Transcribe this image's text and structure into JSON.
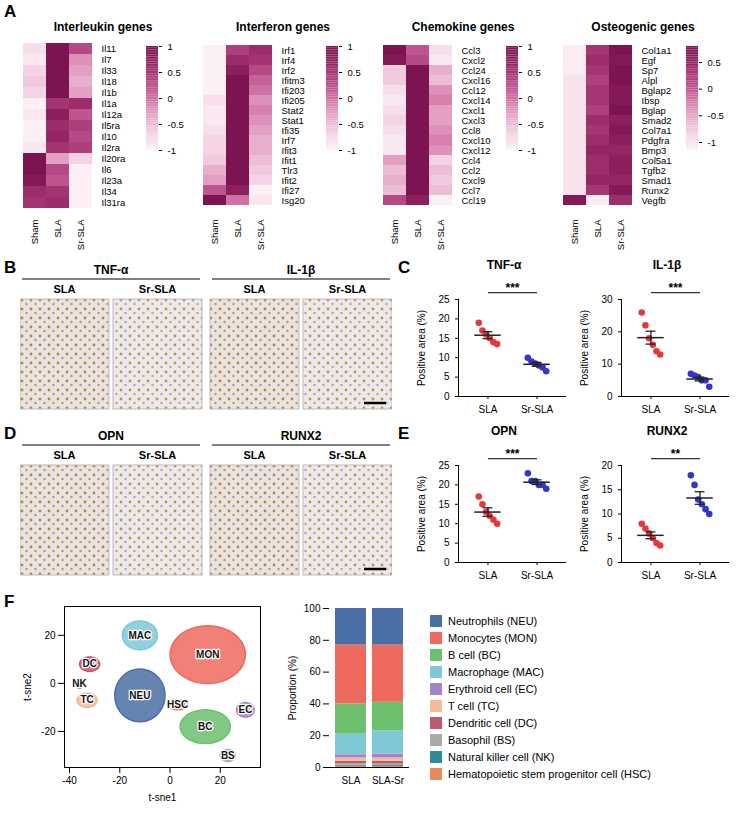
{
  "chart_data": [
    {
      "panel": "A",
      "type": "heatmap",
      "title": "Interleukin genes",
      "categories": [
        "Sham",
        "SLA",
        "Sr-SLA"
      ],
      "rows": [
        "Il11",
        "Il7",
        "Il33",
        "Il18",
        "Il1b",
        "Il1a",
        "Il12a",
        "Il5ra",
        "Il10",
        "Il2ra",
        "Il20ra",
        "Il6",
        "Il23a",
        "Il34",
        "Il31ra"
      ],
      "cells": [
        [
          -0.8,
          1,
          0.3
        ],
        [
          -0.9,
          1,
          -0.2
        ],
        [
          -0.7,
          1,
          -0.3
        ],
        [
          -0.6,
          1,
          -0.4
        ],
        [
          -0.7,
          1,
          -0.3
        ],
        [
          -1,
          0.5,
          0.6
        ],
        [
          -0.9,
          0.8,
          0.2
        ],
        [
          -1,
          0.6,
          0.4
        ],
        [
          -1,
          0.7,
          0.3
        ],
        [
          -0.9,
          0.5,
          0.4
        ],
        [
          1,
          -0.3,
          -0.7
        ],
        [
          1,
          0.3,
          -1
        ],
        [
          0.9,
          0.2,
          -1
        ],
        [
          0.6,
          0.5,
          -1
        ],
        [
          0.5,
          0.6,
          -1
        ]
      ],
      "colorlim": [
        -1,
        1
      ],
      "colorticks": [
        1,
        0.5,
        0,
        -0.5,
        -1
      ]
    },
    {
      "type": "heatmap",
      "title": "Interferon genes",
      "categories": [
        "Sham",
        "SLA",
        "Sr-SLA"
      ],
      "rows": [
        "Irf1",
        "Irf4",
        "Irf2",
        "Ifitm3",
        "Ifi203",
        "Ifi205",
        "Stat2",
        "Stat1",
        "Ifi35",
        "Irf7",
        "Ifit3",
        "Ifit1",
        "Tlr3",
        "Ifit2",
        "Ifi27",
        "Isg20"
      ],
      "cells": [
        [
          -1,
          0.4,
          0.6
        ],
        [
          -1,
          0.6,
          0.5
        ],
        [
          -1,
          0.8,
          0.3
        ],
        [
          -1,
          1,
          0.1
        ],
        [
          -1,
          1,
          0
        ],
        [
          -0.8,
          1,
          -0.2
        ],
        [
          -0.9,
          1,
          -0.1
        ],
        [
          -0.9,
          1,
          -0.2
        ],
        [
          -0.8,
          1,
          -0.3
        ],
        [
          -0.7,
          1,
          -0.4
        ],
        [
          -0.7,
          1,
          -0.4
        ],
        [
          -0.6,
          1,
          -0.5
        ],
        [
          -0.4,
          1,
          -0.6
        ],
        [
          -0.3,
          1,
          -0.7
        ],
        [
          0.2,
          0.8,
          -1
        ],
        [
          1,
          0,
          -0.9
        ]
      ],
      "colorlim": [
        -1,
        1
      ],
      "colorticks": [
        1,
        0.5,
        0,
        -0.5,
        -1
      ]
    },
    {
      "type": "heatmap",
      "title": "Chemokine genes",
      "categories": [
        "Sham",
        "SLA",
        "Sr-SLA"
      ],
      "rows": [
        "Ccl3",
        "Cxcl2",
        "Ccl24",
        "Cxcl16",
        "Ccl12",
        "Cxcl14",
        "Cxcl1",
        "Cxcl3",
        "Ccl8",
        "Cxcl10",
        "Cxcl12",
        "Ccl4",
        "Ccl2",
        "Cxcl9",
        "Ccl7",
        "Ccl19"
      ],
      "cells": [
        [
          1,
          0.2,
          -0.8
        ],
        [
          0.9,
          0.3,
          -0.9
        ],
        [
          -0.6,
          1,
          -0.4
        ],
        [
          -0.6,
          1,
          -0.5
        ],
        [
          -0.8,
          1,
          -0.2
        ],
        [
          -0.9,
          1,
          -0.1
        ],
        [
          -0.8,
          1,
          -0.3
        ],
        [
          -0.7,
          1,
          -0.3
        ],
        [
          -0.8,
          1,
          -0.2
        ],
        [
          -0.9,
          1,
          -0.1
        ],
        [
          -0.9,
          1,
          -0.2
        ],
        [
          -0.3,
          1,
          -0.7
        ],
        [
          -0.5,
          1,
          -0.5
        ],
        [
          -0.4,
          1,
          -0.6
        ],
        [
          -0.5,
          1,
          -0.5
        ],
        [
          0.3,
          0.8,
          -1
        ]
      ],
      "colorlim": [
        -1,
        1
      ],
      "colorticks": [
        1,
        0.5,
        0,
        -0.5,
        -1
      ]
    },
    {
      "type": "heatmap",
      "title": "Osteogenic genes",
      "categories": [
        "Sham",
        "SLA",
        "Sr-SLA"
      ],
      "rows": [
        "Col1a1",
        "Egf",
        "Sp7",
        "Alpl",
        "Bglap2",
        "Ibsp",
        "Bglap",
        "Smad2",
        "Col7a1",
        "Pdgfra",
        "Bmp3",
        "Col5a1",
        "Tgfb2",
        "Smad1",
        "Runx2",
        "Vegfb"
      ],
      "cells": [
        [
          -1.1,
          0.3,
          0.8
        ],
        [
          -1.1,
          0.4,
          0.7
        ],
        [
          -1.1,
          0.3,
          0.8
        ],
        [
          -1,
          0.2,
          0.8
        ],
        [
          -1,
          0.3,
          0.7
        ],
        [
          -1,
          0.3,
          0.7
        ],
        [
          -1,
          0.2,
          0.8
        ],
        [
          -1,
          0.4,
          0.6
        ],
        [
          -1,
          0.3,
          0.7
        ],
        [
          -1,
          0.4,
          0.6
        ],
        [
          -1,
          0.5,
          0.5
        ],
        [
          -1,
          0.4,
          0.6
        ],
        [
          -1,
          0.4,
          0.6
        ],
        [
          -1,
          0.5,
          0.5
        ],
        [
          -1,
          0.3,
          0.7
        ],
        [
          0.7,
          -1.1,
          0.4
        ]
      ],
      "colorlim": [
        -1.15,
        0.8
      ],
      "colorticks": [
        0.5,
        0,
        -0.5,
        -1
      ]
    },
    {
      "panel": "B",
      "type": "image",
      "groups": [
        {
          "title": "TNF-α",
          "categories": [
            "SLA",
            "Sr-SLA"
          ]
        },
        {
          "title": "IL-1β",
          "categories": [
            "SLA",
            "Sr-SLA"
          ]
        }
      ]
    },
    {
      "panel": "C",
      "type": "scatter",
      "title": "TNF-α",
      "categories": [
        "SLA",
        "Sr-SLA"
      ],
      "colors": [
        "#e5383b",
        "#3535c8"
      ],
      "values": [
        15.8,
        8.3
      ],
      "errors": [
        0.9,
        0.5
      ],
      "points": [
        [
          19,
          17,
          16,
          15,
          14,
          13.5
        ],
        [
          10,
          9,
          8.5,
          8,
          7.5,
          6.5
        ]
      ],
      "significance": "***",
      "y_label": "Positive area (%)",
      "ylim": [
        0,
        25
      ],
      "yticks": [
        0,
        5,
        10,
        15,
        20,
        25
      ]
    },
    {
      "type": "scatter",
      "title": "IL-1β",
      "categories": [
        "SLA",
        "Sr-SLA"
      ],
      "colors": [
        "#e5383b",
        "#3535c8"
      ],
      "values": [
        18.2,
        5.4
      ],
      "errors": [
        2.0,
        0.6
      ],
      "points": [
        [
          26,
          22,
          18,
          16,
          14,
          13
        ],
        [
          7,
          6.5,
          6,
          5,
          5,
          3
        ]
      ],
      "significance": "***",
      "y_label": "Positive area (%)",
      "ylim": [
        0,
        30
      ],
      "yticks": [
        0,
        10,
        20,
        30
      ]
    },
    {
      "panel": "D",
      "type": "image",
      "groups": [
        {
          "title": "OPN",
          "categories": [
            "SLA",
            "Sr-SLA"
          ]
        },
        {
          "title": "RUNX2",
          "categories": [
            "SLA",
            "Sr-SLA"
          ]
        }
      ]
    },
    {
      "panel": "E",
      "type": "scatter",
      "title": "OPN",
      "categories": [
        "SLA",
        "Sr-SLA"
      ],
      "colors": [
        "#e5383b",
        "#3535c8"
      ],
      "values": [
        13.0,
        20.7
      ],
      "errors": [
        1.1,
        0.6
      ],
      "points": [
        [
          17,
          15,
          13,
          12,
          11,
          10
        ],
        [
          23,
          21,
          21,
          20,
          20,
          19
        ]
      ],
      "significance": "***",
      "y_label": "Positive area (%)",
      "ylim": [
        0,
        25
      ],
      "yticks": [
        0,
        5,
        10,
        15,
        20,
        25
      ]
    },
    {
      "type": "scatter",
      "title": "RUNX2",
      "categories": [
        "SLA",
        "Sr-SLA"
      ],
      "colors": [
        "#e5383b",
        "#3535c8"
      ],
      "values": [
        5.6,
        13.3
      ],
      "errors": [
        0.7,
        1.3
      ],
      "points": [
        [
          8,
          7,
          6,
          5,
          4,
          3.5
        ],
        [
          18,
          16,
          13,
          12,
          11,
          10
        ]
      ],
      "significance": "**",
      "y_label": "Positive area (%)",
      "ylim": [
        0,
        20
      ],
      "yticks": [
        0,
        5,
        10,
        15,
        20
      ]
    },
    {
      "panel": "F",
      "type": "scatter",
      "x_label": "t-sne1",
      "y_label": "t-sne2",
      "xlim": [
        -42,
        36
      ],
      "xticks": [
        -40,
        -20,
        0,
        20
      ],
      "ylim": [
        -35,
        32
      ],
      "yticks": [
        -20,
        0,
        20
      ],
      "clusters": [
        {
          "name": "NEU",
          "color": "#4a6fa5",
          "x": -12,
          "y": -5,
          "rx": 10,
          "ry": 11
        },
        {
          "name": "MON",
          "color": "#ee6a5f",
          "x": 15,
          "y": 12,
          "rx": 15,
          "ry": 12
        },
        {
          "name": "BC",
          "color": "#6cc06e",
          "x": 14,
          "y": -18,
          "rx": 10,
          "ry": 7
        },
        {
          "name": "MAC",
          "color": "#7ec8d8",
          "x": -12,
          "y": 20,
          "rx": 7,
          "ry": 6
        },
        {
          "name": "EC",
          "color": "#a383c9",
          "x": 30,
          "y": -11,
          "rx": 3.5,
          "ry": 3
        },
        {
          "name": "TC",
          "color": "#f4b997",
          "x": -33,
          "y": -7,
          "rx": 4,
          "ry": 3
        },
        {
          "name": "DC",
          "color": "#c05a6a",
          "x": -32,
          "y": 8,
          "rx": 4,
          "ry": 3
        },
        {
          "name": "BS",
          "color": "#aaaaaa",
          "x": 23,
          "y": -30,
          "rx": 3,
          "ry": 2.5
        },
        {
          "name": "NK",
          "color": "#2f8b9a",
          "x": -36,
          "y": 0,
          "rx": 1.5,
          "ry": 2
        },
        {
          "name": "HSC",
          "color": "#e8875a",
          "x": 3,
          "y": -9,
          "rx": 4,
          "ry": 2
        }
      ]
    },
    {
      "type": "bar",
      "stacked": true,
      "categories": [
        "SLA",
        "SLA-Sr"
      ],
      "y_label": "Proportion (%)",
      "ylim": [
        0,
        100
      ],
      "yticks": [
        0,
        20,
        40,
        60,
        80,
        100
      ],
      "legend": "right",
      "series": [
        {
          "name": "Neutrophils (NEU)",
          "color": "#4a6fa5",
          "values": [
            23,
            23
          ]
        },
        {
          "name": "Monocytes (MON)",
          "color": "#ee6a5f",
          "values": [
            37,
            36
          ]
        },
        {
          "name": "B cell (BC)",
          "color": "#6cc06e",
          "values": [
            19,
            18
          ]
        },
        {
          "name": "Macrophage (MAC)",
          "color": "#7ec8d8",
          "values": [
            13,
            14.5
          ]
        },
        {
          "name": "Erythroid cell (EC)",
          "color": "#a383c9",
          "values": [
            2,
            2.5
          ]
        },
        {
          "name": "T cell (TC)",
          "color": "#f4b997",
          "values": [
            2,
            2
          ]
        },
        {
          "name": "Dendritic cell (DC)",
          "color": "#c05a6a",
          "values": [
            1.5,
            1.8
          ]
        },
        {
          "name": "Basophil (BS)",
          "color": "#aaaaaa",
          "values": [
            1,
            1
          ]
        },
        {
          "name": "Natural killer cell (NK)",
          "color": "#2f8b9a",
          "values": [
            0.7,
            0.6
          ]
        },
        {
          "name": "Hematopoietic stem progenitor cell (HSC)",
          "color": "#e8875a",
          "values": [
            0.8,
            0.6
          ]
        }
      ]
    }
  ]
}
